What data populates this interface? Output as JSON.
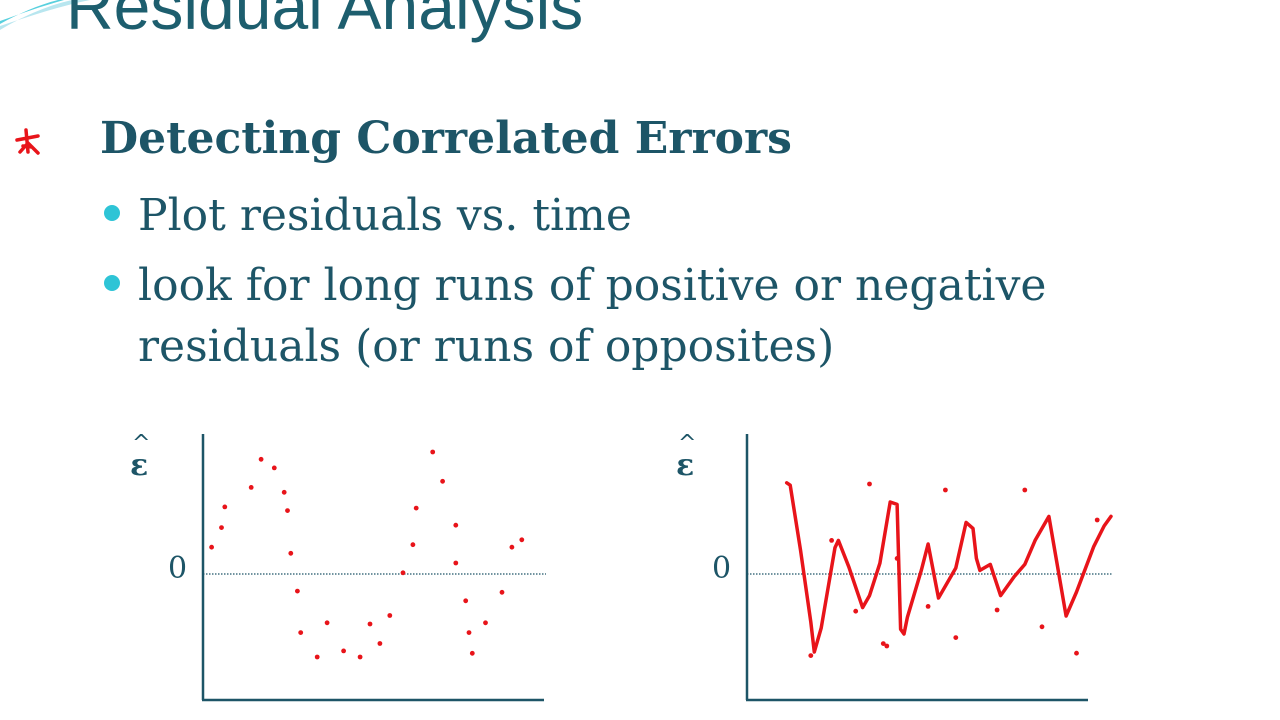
{
  "slide": {
    "title": "Residual Analysis",
    "heading": "Detecting Correlated Errors",
    "bullets": [
      "Plot residuals vs. time",
      "look for long runs of positive or negative residuals (or runs of opposites)"
    ]
  },
  "colors": {
    "title": "#1d5e6e",
    "text": "#1d5567",
    "bullet": "#2ec4d6",
    "ink": "#e8141a",
    "axis": "#1d5567"
  },
  "chart_data": [
    {
      "type": "scatter",
      "y_symbol": "ε",
      "y_hat": "^",
      "zero_label": "0",
      "xlim": [
        0,
        1
      ],
      "ylim": [
        -1,
        1
      ],
      "points": [
        {
          "x": 0.02,
          "y": 0.22
        },
        {
          "x": 0.05,
          "y": 0.38
        },
        {
          "x": 0.06,
          "y": 0.55
        },
        {
          "x": 0.14,
          "y": 0.71
        },
        {
          "x": 0.17,
          "y": 0.94
        },
        {
          "x": 0.21,
          "y": 0.87
        },
        {
          "x": 0.24,
          "y": 0.67
        },
        {
          "x": 0.25,
          "y": 0.52
        },
        {
          "x": 0.26,
          "y": 0.17
        },
        {
          "x": 0.28,
          "y": -0.14
        },
        {
          "x": 0.29,
          "y": -0.48
        },
        {
          "x": 0.34,
          "y": -0.68
        },
        {
          "x": 0.37,
          "y": -0.4
        },
        {
          "x": 0.42,
          "y": -0.63
        },
        {
          "x": 0.47,
          "y": -0.68
        },
        {
          "x": 0.5,
          "y": -0.41
        },
        {
          "x": 0.53,
          "y": -0.57
        },
        {
          "x": 0.56,
          "y": -0.34
        },
        {
          "x": 0.6,
          "y": 0.01
        },
        {
          "x": 0.63,
          "y": 0.24
        },
        {
          "x": 0.64,
          "y": 0.54
        },
        {
          "x": 0.69,
          "y": 1.0
        },
        {
          "x": 0.72,
          "y": 0.76
        },
        {
          "x": 0.76,
          "y": 0.4
        },
        {
          "x": 0.76,
          "y": 0.09
        },
        {
          "x": 0.79,
          "y": -0.22
        },
        {
          "x": 0.8,
          "y": -0.48
        },
        {
          "x": 0.81,
          "y": -0.65
        },
        {
          "x": 0.85,
          "y": -0.4
        },
        {
          "x": 0.9,
          "y": -0.15
        },
        {
          "x": 0.93,
          "y": 0.22
        },
        {
          "x": 0.96,
          "y": 0.28
        }
      ]
    },
    {
      "type": "line",
      "y_symbol": "ε",
      "y_hat": "^",
      "zero_label": "0",
      "xlim": [
        0,
        1
      ],
      "ylim": [
        -1,
        1
      ],
      "x": [
        0.06,
        0.07,
        0.1,
        0.13,
        0.14,
        0.16,
        0.2,
        0.21,
        0.24,
        0.28,
        0.3,
        0.33,
        0.36,
        0.38,
        0.39,
        0.4,
        0.41,
        0.45,
        0.47,
        0.5,
        0.55,
        0.58,
        0.6,
        0.61,
        0.62,
        0.65,
        0.68,
        0.72,
        0.75,
        0.78,
        0.82,
        0.87,
        0.9,
        0.95,
        0.98,
        1.0
      ],
      "series": [
        {
          "values": [
            0.76,
            0.74,
            0.2,
            -0.4,
            -0.65,
            -0.45,
            0.22,
            0.28,
            0.06,
            -0.28,
            -0.18,
            0.09,
            0.6,
            0.58,
            -0.46,
            -0.5,
            -0.36,
            0.03,
            0.25,
            -0.2,
            0.05,
            0.43,
            0.38,
            0.13,
            0.03,
            0.08,
            -0.18,
            -0.02,
            0.08,
            0.28,
            0.48,
            -0.35,
            -0.15,
            0.23,
            0.4,
            0.48
          ]
        }
      ],
      "scatter_points": [
        {
          "x": 0.13,
          "y": -0.68
        },
        {
          "x": 0.19,
          "y": 0.28
        },
        {
          "x": 0.26,
          "y": -0.31
        },
        {
          "x": 0.3,
          "y": 0.75
        },
        {
          "x": 0.34,
          "y": -0.58
        },
        {
          "x": 0.35,
          "y": -0.6
        },
        {
          "x": 0.38,
          "y": 0.13
        },
        {
          "x": 0.47,
          "y": -0.27
        },
        {
          "x": 0.52,
          "y": 0.7
        },
        {
          "x": 0.55,
          "y": -0.53
        },
        {
          "x": 0.67,
          "y": -0.3
        },
        {
          "x": 0.75,
          "y": 0.7
        },
        {
          "x": 0.8,
          "y": -0.44
        },
        {
          "x": 0.9,
          "y": -0.66
        },
        {
          "x": 0.96,
          "y": 0.45
        }
      ]
    }
  ]
}
